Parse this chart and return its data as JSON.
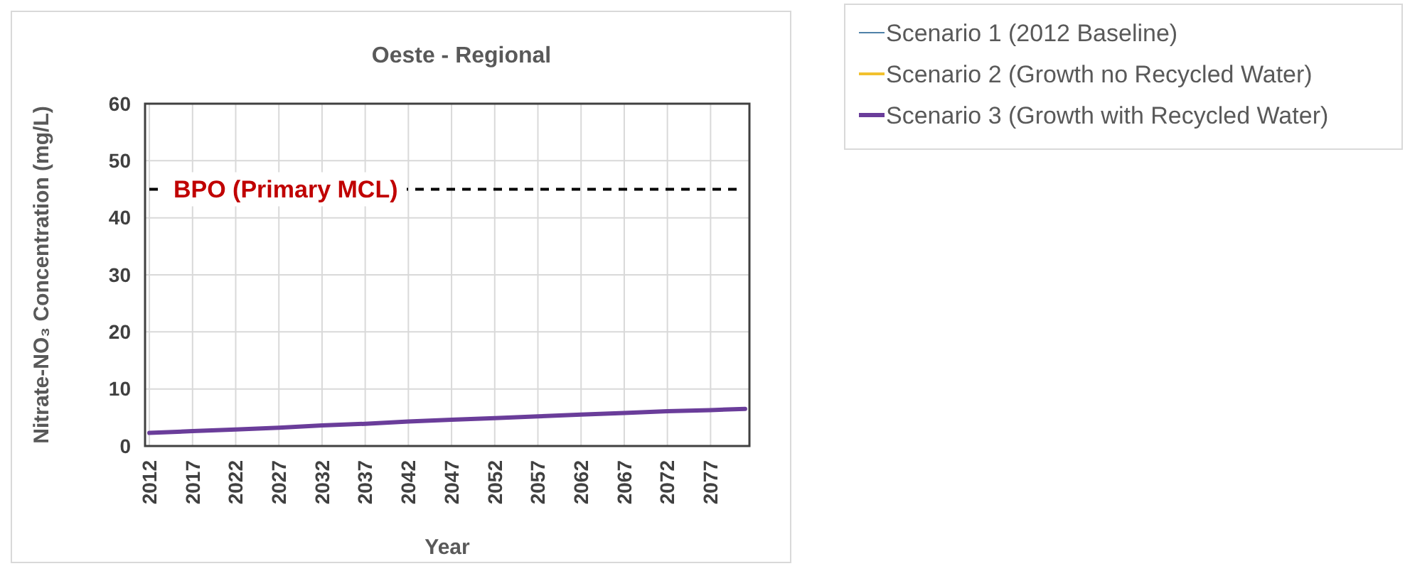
{
  "chart_data": {
    "type": "line",
    "title": "Oeste - Regional",
    "xlabel": "Year",
    "ylabel": "Nitrate-NO₃ Concentration (mg/L)",
    "x": [
      2012,
      2017,
      2022,
      2027,
      2032,
      2037,
      2042,
      2047,
      2052,
      2057,
      2062,
      2067,
      2072,
      2077,
      2081
    ],
    "series": [
      {
        "name": "Scenario 1 (2012 Baseline)",
        "color": "#4f81a8",
        "values": [
          null,
          null,
          null,
          null,
          null,
          null,
          null,
          null,
          null,
          null,
          null,
          null,
          null,
          null,
          null
        ]
      },
      {
        "name": "Scenario 2 (Growth no Recycled Water)",
        "color": "#f2c12e",
        "values": [
          null,
          null,
          null,
          null,
          null,
          null,
          null,
          null,
          null,
          null,
          null,
          null,
          null,
          null,
          null
        ]
      },
      {
        "name": "Scenario 3 (Growth with Recycled Water)",
        "color": "#6a3d9a",
        "values": [
          2.3,
          2.6,
          2.9,
          3.2,
          3.6,
          3.9,
          4.3,
          4.6,
          4.9,
          5.2,
          5.5,
          5.8,
          6.1,
          6.3,
          6.5
        ]
      }
    ],
    "xlim": [
      2011.5,
      2081.5
    ],
    "xticks": [
      2012,
      2017,
      2022,
      2027,
      2032,
      2037,
      2042,
      2047,
      2052,
      2057,
      2062,
      2067,
      2072,
      2077
    ],
    "ylim": [
      0,
      60
    ],
    "yticks": [
      0,
      10,
      20,
      30,
      40,
      50,
      60
    ],
    "ref_lines": [
      {
        "axis": "y",
        "value": 45,
        "label": "BPO (Primary MCL)",
        "color": "#000000",
        "line_style": "dashed"
      }
    ],
    "grid": true,
    "legend": "top right",
    "marker": "none",
    "line_style": "solid"
  }
}
